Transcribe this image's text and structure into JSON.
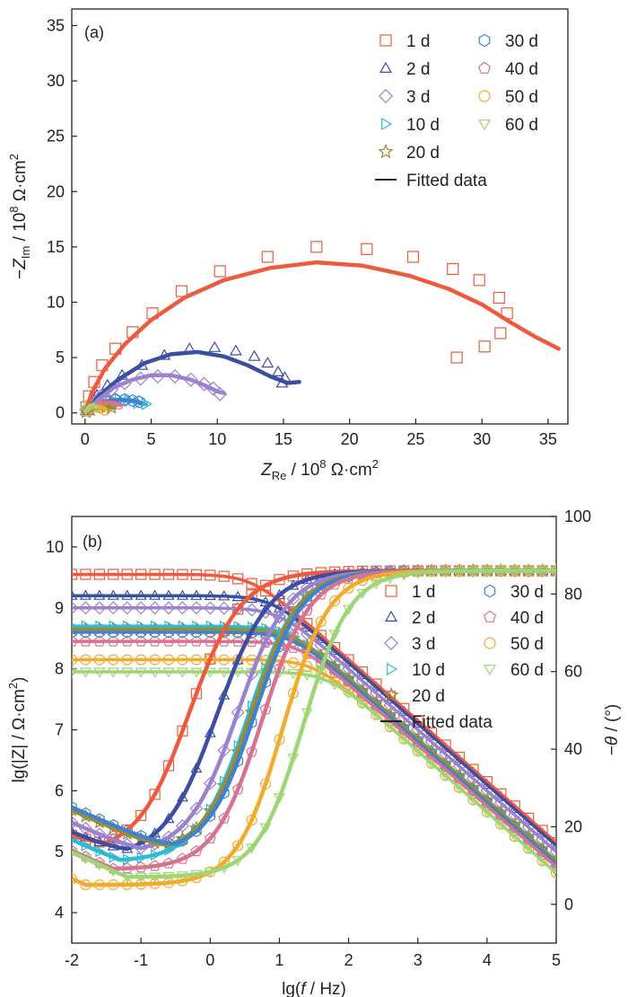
{
  "colors": {
    "1 d": "#ee5a3e",
    "2 d": "#3c4ea4",
    "3 d": "#9a82cf",
    "10 d": "#2fbad2",
    "20 d": "#9c8c2e",
    "30 d": "#3f82d0",
    "40 d": "#d7738f",
    "50 d": "#f2ab2c",
    "60 d": "#9ed676",
    "fit": "#222222"
  },
  "chart_data": [
    {
      "id": "a",
      "type": "scatter",
      "panel_label": "(a)",
      "xlabel": {
        "italic": "Z",
        "sub": "Re",
        "rest": " / 10",
        "sup": "8",
        "unit": " Ω·cm",
        "unitsup": "2"
      },
      "ylabel": {
        "pre": "−",
        "italic": "Z",
        "sub": "Im",
        "rest": " / 10",
        "sup": "8",
        "unit": " Ω·cm",
        "unitsup": "2"
      },
      "xlim": [
        -1,
        36.5
      ],
      "ylim": [
        -1,
        36.5
      ],
      "xticks": [
        0,
        5,
        10,
        15,
        20,
        25,
        30,
        35
      ],
      "yticks": [
        0,
        5,
        10,
        15,
        20,
        25,
        30,
        35
      ],
      "legend": [
        "1 d",
        "2 d",
        "3 d",
        "10 d",
        "20 d",
        "30 d",
        "40 d",
        "50 d",
        "60 d",
        "Fitted data"
      ],
      "series": [
        {
          "name": "1 d",
          "marker": "square",
          "points": [
            [
              0.1,
              0.5
            ],
            [
              0.3,
              1.5
            ],
            [
              0.7,
              2.8
            ],
            [
              1.3,
              4.3
            ],
            [
              2.3,
              5.8
            ],
            [
              3.6,
              7.3
            ],
            [
              5.1,
              9.0
            ],
            [
              7.3,
              11.0
            ],
            [
              10.2,
              12.8
            ],
            [
              13.8,
              14.1
            ],
            [
              17.5,
              15.0
            ],
            [
              21.3,
              14.8
            ],
            [
              24.8,
              14.1
            ],
            [
              27.8,
              13.0
            ],
            [
              29.8,
              12.0
            ],
            [
              31.3,
              10.4
            ],
            [
              31.9,
              9.0
            ],
            [
              31.4,
              7.2
            ],
            [
              30.2,
              6.0
            ],
            [
              28.1,
              5.0
            ]
          ],
          "fit": [
            [
              0.1,
              0.2
            ],
            [
              0.5,
              1.8
            ],
            [
              1.5,
              4.0
            ],
            [
              3,
              6.2
            ],
            [
              5,
              8.4
            ],
            [
              7.5,
              10.4
            ],
            [
              10.5,
              12.0
            ],
            [
              14,
              13.1
            ],
            [
              17.5,
              13.6
            ],
            [
              21,
              13.3
            ],
            [
              24.5,
              12.4
            ],
            [
              27.5,
              11.2
            ],
            [
              30,
              9.8
            ],
            [
              32,
              8.3
            ],
            [
              34,
              6.9
            ],
            [
              35.8,
              5.8
            ]
          ]
        },
        {
          "name": "2 d",
          "marker": "triangle",
          "points": [
            [
              0.1,
              0.2
            ],
            [
              0.4,
              0.8
            ],
            [
              0.9,
              1.6
            ],
            [
              1.7,
              2.5
            ],
            [
              2.8,
              3.4
            ],
            [
              4.3,
              4.3
            ],
            [
              6.0,
              5.2
            ],
            [
              7.9,
              5.8
            ],
            [
              9.8,
              5.9
            ],
            [
              11.4,
              5.6
            ],
            [
              12.8,
              5.1
            ],
            [
              13.8,
              4.5
            ],
            [
              14.6,
              3.7
            ],
            [
              15.1,
              3.2
            ],
            [
              14.9,
              2.7
            ]
          ],
          "fit": [
            [
              0.1,
              0.1
            ],
            [
              1,
              1.5
            ],
            [
              2.5,
              3.0
            ],
            [
              4.5,
              4.5
            ],
            [
              6.5,
              5.3
            ],
            [
              8.5,
              5.5
            ],
            [
              10.5,
              5.1
            ],
            [
              12.3,
              4.3
            ],
            [
              14,
              3.3
            ],
            [
              15.3,
              2.7
            ],
            [
              16.2,
              2.8
            ]
          ]
        },
        {
          "name": "3 d",
          "marker": "diamond",
          "points": [
            [
              0.2,
              0.3
            ],
            [
              0.6,
              0.9
            ],
            [
              1.2,
              1.5
            ],
            [
              2.0,
              2.1
            ],
            [
              3.0,
              2.7
            ],
            [
              4.2,
              3.1
            ],
            [
              5.5,
              3.3
            ],
            [
              6.8,
              3.3
            ],
            [
              8.0,
              3.0
            ],
            [
              9.0,
              2.6
            ],
            [
              9.7,
              2.2
            ],
            [
              10.2,
              1.7
            ]
          ],
          "fit": [
            [
              0.1,
              0.1
            ],
            [
              1,
              1.2
            ],
            [
              2.2,
              2.3
            ],
            [
              3.6,
              3.0
            ],
            [
              5,
              3.4
            ],
            [
              6.5,
              3.4
            ],
            [
              8,
              3.0
            ],
            [
              9.2,
              2.4
            ],
            [
              10.1,
              1.9
            ],
            [
              10.5,
              1.8
            ]
          ]
        },
        {
          "name": "10 d",
          "marker": "triangle-right",
          "points": [
            [
              0.1,
              0.1
            ],
            [
              0.4,
              0.4
            ],
            [
              0.8,
              0.7
            ],
            [
              1.3,
              0.9
            ],
            [
              1.9,
              1.1
            ],
            [
              2.6,
              1.2
            ],
            [
              3.3,
              1.1
            ],
            [
              4.0,
              0.9
            ],
            [
              4.6,
              0.8
            ]
          ],
          "fit": [
            [
              0.1,
              0.05
            ],
            [
              0.8,
              0.6
            ],
            [
              1.6,
              0.95
            ],
            [
              2.5,
              1.15
            ],
            [
              3.4,
              1.1
            ],
            [
              4.1,
              0.9
            ],
            [
              4.6,
              0.8
            ]
          ]
        },
        {
          "name": "20 d",
          "marker": "star",
          "points": [
            [
              0.1,
              0.1
            ],
            [
              0.4,
              0.3
            ],
            [
              0.8,
              0.5
            ],
            [
              1.2,
              0.6
            ],
            [
              1.6,
              0.6
            ],
            [
              2.0,
              0.5
            ]
          ],
          "fit": [
            [
              0.1,
              0.05
            ],
            [
              0.7,
              0.45
            ],
            [
              1.3,
              0.6
            ],
            [
              1.9,
              0.5
            ],
            [
              2.2,
              0.45
            ]
          ]
        },
        {
          "name": "30 d",
          "marker": "hexagon",
          "points": [
            [
              0.2,
              0.3
            ],
            [
              0.6,
              0.6
            ],
            [
              1.1,
              0.9
            ],
            [
              1.7,
              1.1
            ],
            [
              2.3,
              1.2
            ],
            [
              3.0,
              1.2
            ],
            [
              3.6,
              1.1
            ],
            [
              4.1,
              1.0
            ]
          ],
          "fit": [
            [
              0.1,
              0.1
            ],
            [
              0.9,
              0.75
            ],
            [
              1.8,
              1.1
            ],
            [
              2.8,
              1.2
            ],
            [
              3.6,
              1.1
            ],
            [
              4.2,
              0.9
            ]
          ]
        },
        {
          "name": "40 d",
          "marker": "pentagon",
          "points": [
            [
              0.2,
              0.4
            ],
            [
              0.6,
              0.7
            ],
            [
              1.1,
              0.9
            ],
            [
              1.6,
              1.0
            ],
            [
              2.1,
              0.9
            ],
            [
              2.5,
              0.8
            ]
          ],
          "fit": [
            [
              0.1,
              0.1
            ],
            [
              0.8,
              0.75
            ],
            [
              1.5,
              0.95
            ],
            [
              2.2,
              0.9
            ],
            [
              2.7,
              0.7
            ]
          ]
        },
        {
          "name": "50 d",
          "marker": "circle",
          "points": [
            [
              0.1,
              0.2
            ],
            [
              0.4,
              0.5
            ],
            [
              0.8,
              0.6
            ],
            [
              1.2,
              0.5
            ],
            [
              1.5,
              0.3
            ]
          ],
          "fit": [
            [
              0.05,
              0.1
            ],
            [
              0.5,
              0.5
            ],
            [
              1.0,
              0.6
            ],
            [
              1.5,
              0.4
            ]
          ]
        },
        {
          "name": "60 d",
          "marker": "triangle-down",
          "points": [
            [
              0.1,
              0.3
            ],
            [
              0.3,
              0.6
            ],
            [
              0.5,
              0.8
            ],
            [
              0.7,
              0.7
            ],
            [
              0.9,
              0.5
            ]
          ],
          "fit": [
            [
              0.05,
              0.1
            ],
            [
              0.3,
              0.6
            ],
            [
              0.6,
              0.75
            ],
            [
              0.9,
              0.5
            ]
          ]
        }
      ]
    },
    {
      "id": "b",
      "type": "line",
      "panel_label": "(b)",
      "xlabel": {
        "pre": "lg(",
        "italic": "f",
        "rest": " / Hz)"
      },
      "ylabel": {
        "text": "lg(|Z| / Ω·cm",
        "sup": "2",
        "post": ")"
      },
      "y2label": {
        "pre": "−",
        "italic": "θ",
        "rest": " / (°)"
      },
      "xlim": [
        -2,
        5
      ],
      "ylim": [
        3.5,
        10.5
      ],
      "y2lim": [
        -10,
        100
      ],
      "xticks": [
        -2,
        -1,
        0,
        1,
        2,
        3,
        4,
        5
      ],
      "yticks": [
        4,
        5,
        6,
        7,
        8,
        9,
        10
      ],
      "y2ticks": [
        0,
        20,
        40,
        60,
        80,
        100
      ],
      "legend": [
        "1 d",
        "2 d",
        "3 d",
        "10 d",
        "20 d",
        "30 d",
        "40 d",
        "50 d",
        "60 d",
        "Fitted data"
      ],
      "impedance": [
        {
          "name": "1 d",
          "low": 9.55,
          "fc": 0.6
        },
        {
          "name": "2 d",
          "low": 9.2,
          "fc": 0.9
        },
        {
          "name": "3 d",
          "low": 9.0,
          "fc": 1.0
        },
        {
          "name": "10 d",
          "low": 8.7,
          "fc": 1.15
        },
        {
          "name": "20 d",
          "low": 8.65,
          "fc": 1.2
        },
        {
          "name": "30 d",
          "low": 8.6,
          "fc": 1.2
        },
        {
          "name": "40 d",
          "low": 8.45,
          "fc": 1.3
        },
        {
          "name": "50 d",
          "low": 8.15,
          "fc": 1.5
        },
        {
          "name": "60 d",
          "low": 7.95,
          "fc": 1.7
        }
      ],
      "phase": [
        {
          "name": "1 d",
          "min": 13,
          "fmin": -1.5,
          "mid": -0.3,
          "slope": 1.15
        },
        {
          "name": "2 d",
          "min": 12,
          "fmin": -1.2,
          "mid": 0.1,
          "slope": 1.15
        },
        {
          "name": "3 d",
          "min": 13,
          "fmin": -1.0,
          "mid": 0.4,
          "slope": 1.2
        },
        {
          "name": "10 d",
          "min": 11,
          "fmin": -1.3,
          "mid": 0.55,
          "slope": 1.2
        },
        {
          "name": "20 d",
          "min": 13,
          "fmin": -0.6,
          "mid": 0.6,
          "slope": 1.25
        },
        {
          "name": "30 d",
          "min": 13,
          "fmin": -0.5,
          "mid": 0.65,
          "slope": 1.25
        },
        {
          "name": "40 d",
          "min": 9,
          "fmin": -1.4,
          "mid": 0.75,
          "slope": 1.25
        },
        {
          "name": "50 d",
          "min": 5,
          "fmin": -1.8,
          "mid": 1.05,
          "slope": 1.3
        },
        {
          "name": "60 d",
          "min": 7,
          "fmin": -1.2,
          "mid": 1.35,
          "slope": 1.3
        }
      ]
    }
  ]
}
